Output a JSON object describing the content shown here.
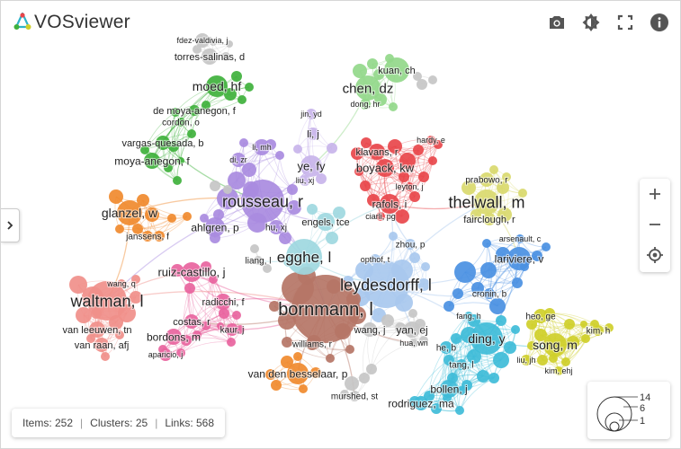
{
  "app": {
    "title": "VOSviewer"
  },
  "toolbar": {
    "icons": [
      "camera-icon",
      "brightness-icon",
      "fullscreen-icon",
      "info-icon"
    ]
  },
  "status": {
    "items_label": "Items: 252",
    "clusters_label": "Clusters: 25",
    "links_label": "Links: 568",
    "separator": "|"
  },
  "size_legend": {
    "values": [
      "14",
      "6",
      "1"
    ]
  },
  "colors": {
    "red": "#e8464b",
    "green": "#3fb13c",
    "blue": "#4a90e2",
    "yellow": "#cfcf2a",
    "purple": "#a98be0",
    "cyan": "#3fbcd8",
    "orange": "#f08a2e",
    "brown": "#b57566",
    "pink": "#e8649e",
    "salmon": "#f08f8a",
    "lightblue": "#a8c8ee",
    "lightcyan": "#9ed8e0",
    "olive": "#d9d96e",
    "gray": "#c6c6c6",
    "lightgreen": "#93d88a",
    "lightpurple": "#c8b4ea"
  },
  "nodes": [
    {
      "label": "fdez-valdivia, j",
      "color": "gray"
    },
    {
      "label": "torres-salinas, d",
      "color": "gray"
    },
    {
      "label": "moed, hf",
      "color": "green"
    },
    {
      "label": "de moya-anegon, f",
      "color": "green"
    },
    {
      "label": "cordon, o",
      "color": "green"
    },
    {
      "label": "vargas-quesada, b",
      "color": "green"
    },
    {
      "label": "moya-anegon, f",
      "color": "green"
    },
    {
      "label": "kuan, ch",
      "color": "lightgreen"
    },
    {
      "label": "chen, dz",
      "color": "lightgreen"
    },
    {
      "label": "dong, hr",
      "color": "lightgreen"
    },
    {
      "label": "jin, yd",
      "color": "lightpurple"
    },
    {
      "label": "li, j",
      "color": "lightpurple"
    },
    {
      "label": "li, mh",
      "color": "purple"
    },
    {
      "label": "di, zr",
      "color": "purple"
    },
    {
      "label": "ye, fy",
      "color": "lightpurple"
    },
    {
      "label": "liu, xj",
      "color": "lightpurple"
    },
    {
      "label": "klavans, r",
      "color": "red"
    },
    {
      "label": "hardy, e",
      "color": "red"
    },
    {
      "label": "boyack, kw",
      "color": "red"
    },
    {
      "label": "leyton, j",
      "color": "red"
    },
    {
      "label": "rafols, i",
      "color": "red"
    },
    {
      "label": "ciarli, pg",
      "color": "red"
    },
    {
      "label": "prabowo, r",
      "color": "olive"
    },
    {
      "label": "thelwall, m",
      "color": "olive"
    },
    {
      "label": "fairclough, r",
      "color": "olive"
    },
    {
      "label": "glanzel, w",
      "color": "orange"
    },
    {
      "label": "janssens, f",
      "color": "orange"
    },
    {
      "label": "rousseau, r",
      "color": "purple"
    },
    {
      "label": "ahlgren, p",
      "color": "purple"
    },
    {
      "label": "hu, xj",
      "color": "purple"
    },
    {
      "label": "engels, tce",
      "color": "lightcyan"
    },
    {
      "label": "egghe, l",
      "color": "lightcyan"
    },
    {
      "label": "liang, l",
      "color": "gray"
    },
    {
      "label": "zhou, p",
      "color": "lightblue"
    },
    {
      "label": "opthof, t",
      "color": "lightblue"
    },
    {
      "label": "arsenault, c",
      "color": "blue"
    },
    {
      "label": "lariviere, v",
      "color": "blue"
    },
    {
      "label": "cronin, b",
      "color": "blue"
    },
    {
      "label": "wang, q",
      "color": "salmon"
    },
    {
      "label": "ruiz-castillo, j",
      "color": "pink"
    },
    {
      "label": "radicchi, f",
      "color": "pink"
    },
    {
      "label": "waltman, l",
      "color": "salmon"
    },
    {
      "label": "leydesdorff, l",
      "color": "lightblue"
    },
    {
      "label": "bornmann, l",
      "color": "brown"
    },
    {
      "label": "costas, r",
      "color": "pink"
    },
    {
      "label": "bordons, m",
      "color": "pink"
    },
    {
      "label": "kaur, j",
      "color": "pink"
    },
    {
      "label": "van leeuwen, tn",
      "color": "salmon"
    },
    {
      "label": "van raan, afj",
      "color": "salmon"
    },
    {
      "label": "aparicio, j",
      "color": "pink"
    },
    {
      "label": "williams, r",
      "color": "brown"
    },
    {
      "label": "wang, j",
      "color": "gray"
    },
    {
      "label": "yan, ej",
      "color": "gray"
    },
    {
      "label": "hua, wn",
      "color": "gray"
    },
    {
      "label": "fang, h",
      "color": "cyan"
    },
    {
      "label": "he, b",
      "color": "cyan"
    },
    {
      "label": "ding, y",
      "color": "cyan"
    },
    {
      "label": "tang, l",
      "color": "cyan"
    },
    {
      "label": "heo, ge",
      "color": "yellow"
    },
    {
      "label": "song, m",
      "color": "yellow"
    },
    {
      "label": "kim, h",
      "color": "yellow"
    },
    {
      "label": "liu, jh",
      "color": "yellow"
    },
    {
      "label": "kim, ehj",
      "color": "yellow"
    },
    {
      "label": "van den besselaar, p",
      "color": "orange"
    },
    {
      "label": "bollen, j",
      "color": "cyan"
    },
    {
      "label": "murshed, st",
      "color": "gray"
    },
    {
      "label": "rodriguez, ma",
      "color": "cyan"
    }
  ]
}
